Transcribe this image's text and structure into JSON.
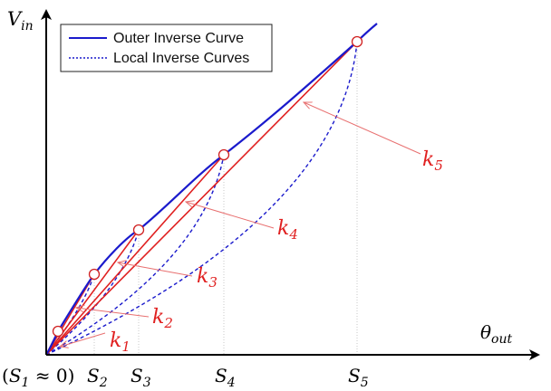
{
  "axes": {
    "y_label": {
      "main": "V",
      "sub": "in"
    },
    "x_label": {
      "main": "θ",
      "sub": "out"
    }
  },
  "legend": {
    "outer": "Outer Inverse Curve",
    "local": "Local Inverse Curves"
  },
  "ticks": [
    {
      "main": "S",
      "sub": "1",
      "prefix": "(",
      "suffix": " ≈ 0)"
    },
    {
      "main": "S",
      "sub": "2"
    },
    {
      "main": "S",
      "sub": "3"
    },
    {
      "main": "S",
      "sub": "4"
    },
    {
      "main": "S",
      "sub": "5"
    }
  ],
  "slope_labels": [
    {
      "main": "k",
      "sub": "1"
    },
    {
      "main": "k",
      "sub": "2"
    },
    {
      "main": "k",
      "sub": "3"
    },
    {
      "main": "k",
      "sub": "4"
    },
    {
      "main": "k",
      "sub": "5"
    }
  ],
  "colors": {
    "outer_curve": "#1a1acc",
    "local_curve": "#1a1acc",
    "slope_line": "#e02020",
    "arrow": "#e87070",
    "marker_fill": "#ffffff",
    "marker_stroke": "#d02020",
    "axis": "#000000",
    "guide": "#bbbbbb"
  }
}
